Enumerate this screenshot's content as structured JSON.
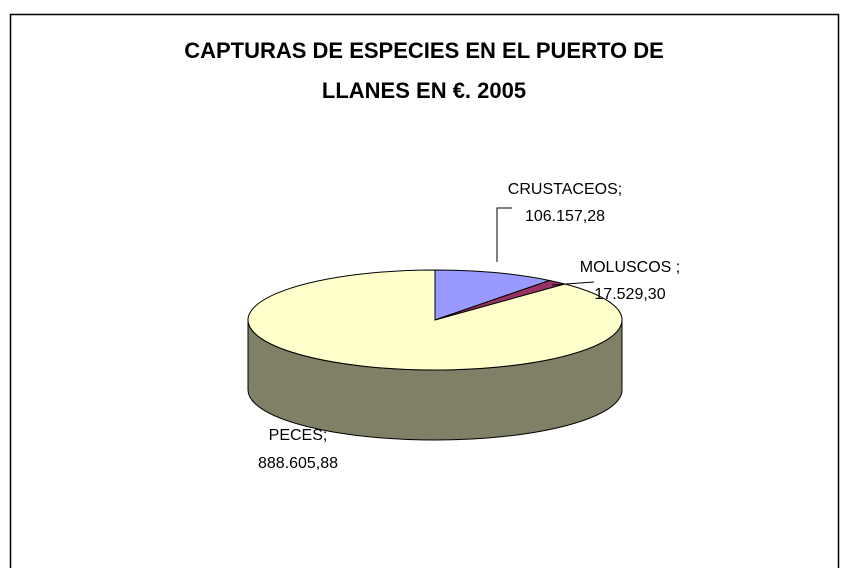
{
  "chart_data": {
    "type": "pie",
    "title": [
      "CAPTURAS DE ESPECIES EN EL PUERTO DE",
      "LLANES EN €. 2005"
    ],
    "categories": [
      "CRUSTACEOS;",
      "MOLUSCOS ;",
      "PECES;"
    ],
    "values": [
      106157.28,
      17529.3,
      888605.88
    ],
    "value_labels": [
      "106.157,28",
      "17.529,30",
      "888.605,88"
    ],
    "colors": [
      "#9999ff",
      "#993366",
      "#ffffcc"
    ]
  }
}
